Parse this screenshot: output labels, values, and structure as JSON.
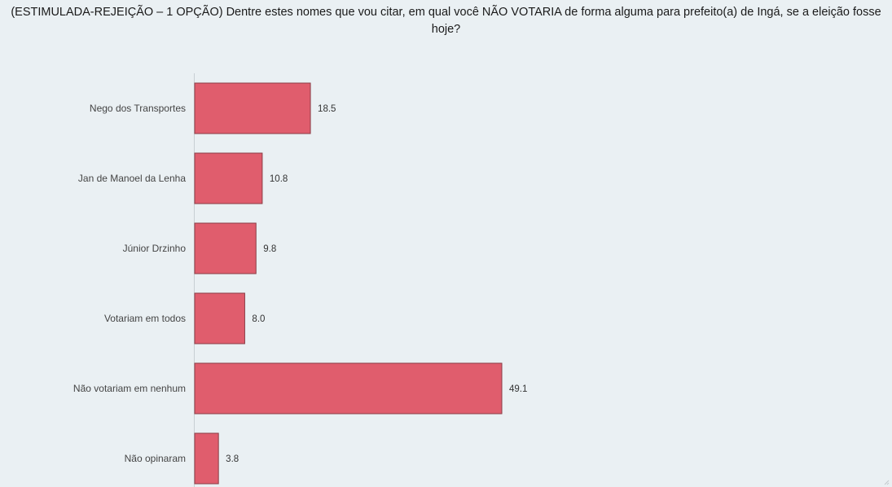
{
  "chart_data": {
    "type": "bar",
    "orientation": "horizontal",
    "title": "(ESTIMULADA-REJEIÇÃO – 1 OPÇÃO) Dentre estes nomes que vou citar, em qual você NÃO VOTARIA de forma alguma para prefeito(a) de Ingá, se a eleição fosse hoje?",
    "categories": [
      "Nego dos Transportes",
      "Jan de Manoel da Lenha",
      "Júnior Drzinho",
      "Votariam em todos",
      "Não votariam em nenhum",
      "Não opinaram"
    ],
    "values": [
      18.5,
      10.8,
      9.8,
      8.0,
      49.1,
      3.8
    ],
    "value_labels": [
      "18.5",
      "10.8",
      "9.8",
      "8.0",
      "49.1",
      "3.8"
    ],
    "xlim": [
      0,
      100
    ],
    "grid": false,
    "legend": "none",
    "bar_color": "#e05d6d",
    "bar_border_color": "#8a3d46",
    "background_color": "#eaf0f3"
  }
}
